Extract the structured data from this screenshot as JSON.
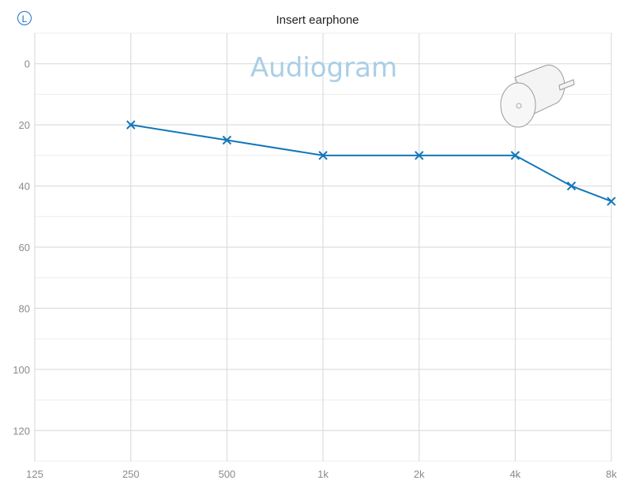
{
  "ear_badge": "L",
  "title": "Insert earphone",
  "watermark": "Audiogram",
  "colors": {
    "series": "#1276b8",
    "grid": "#d6d6d6",
    "grid_minor": "#ededed",
    "badge": "#1a6fc4",
    "watermark": "#a9cfe6"
  },
  "icons": [
    "insert-earphone-icon"
  ],
  "chart_data": {
    "type": "line",
    "title": "Insert earphone",
    "x_scale": "log2",
    "x_tick_labels": [
      "125",
      "250",
      "500",
      "1k",
      "2k",
      "4k",
      "8k"
    ],
    "x_tick_values": [
      125,
      250,
      500,
      1000,
      2000,
      4000,
      8000
    ],
    "y_tick_labels": [
      "0",
      "20",
      "40",
      "60",
      "80",
      "100",
      "120"
    ],
    "y_tick_values": [
      0,
      20,
      40,
      60,
      80,
      100,
      120
    ],
    "ylim": [
      -10,
      130
    ],
    "y_inverted": true,
    "grid": true,
    "marker": "x",
    "series": [
      {
        "x": [
          250,
          500,
          1000,
          2000,
          4000,
          6000,
          8000
        ],
        "y": [
          20,
          25,
          30,
          30,
          30,
          40,
          45
        ]
      }
    ]
  }
}
